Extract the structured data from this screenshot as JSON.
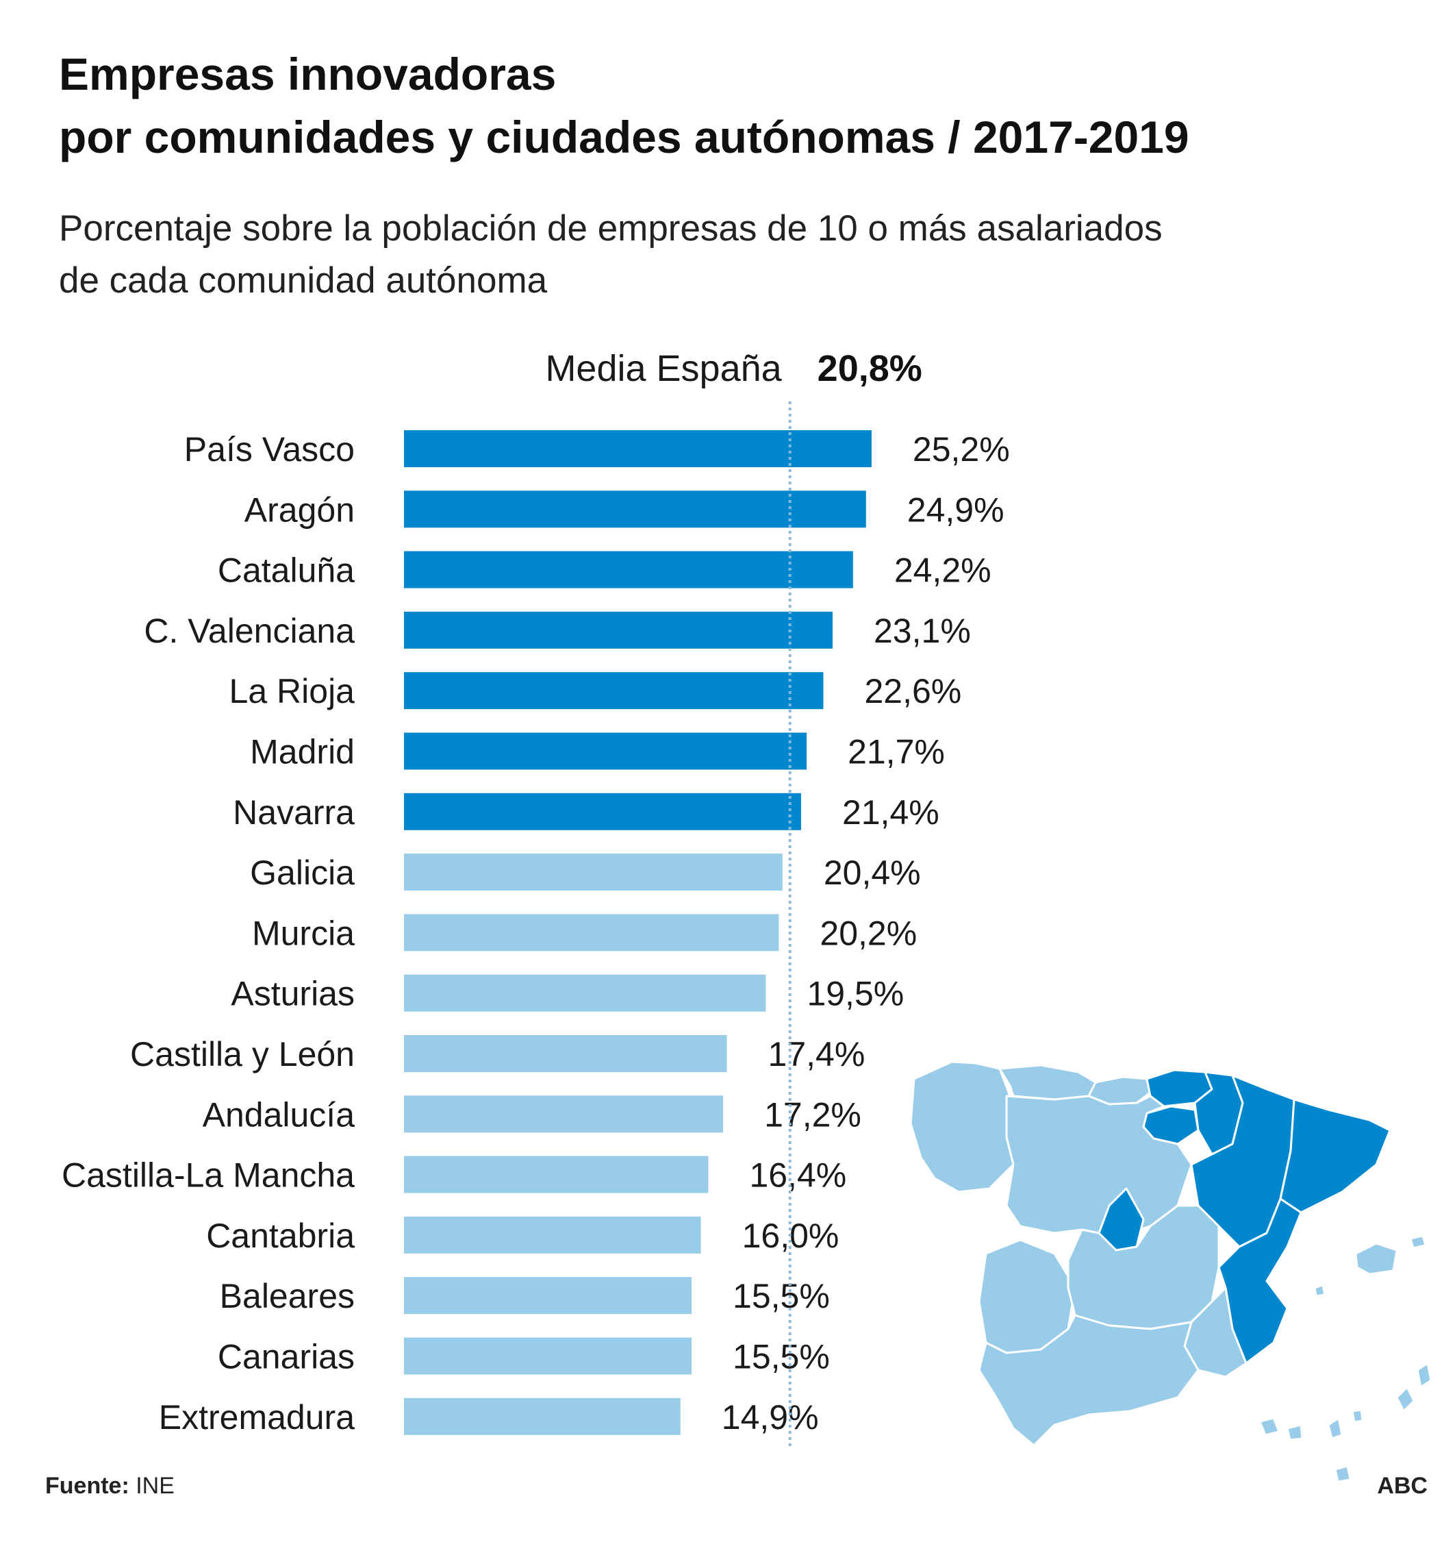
{
  "title_line1": "Empresas innovadoras",
  "title_line2": "por comunidades y ciudades autónomas / 2017-2019",
  "subtitle_line1": "Porcentaje sobre la población de empresas de 10 o más asalariados",
  "subtitle_line2": "de cada comunidad autónoma",
  "source_label": "Fuente:",
  "source_value": "INE",
  "brand": "ABC",
  "colors": {
    "above_average": "#0087cd",
    "below_average": "#99cce8",
    "average_line": "#8ab8d8",
    "map_border": "#ffffff"
  },
  "chart_data": {
    "type": "bar",
    "orientation": "horizontal",
    "categories": [
      "País Vasco",
      "Aragón",
      "Cataluña",
      "C. Valenciana",
      "La Rioja",
      "Madrid",
      "Navarra",
      "Galicia",
      "Murcia",
      "Asturias",
      "Castilla y León",
      "Andalucía",
      "Castilla-La Mancha",
      "Cantabria",
      "Baleares",
      "Canarias",
      "Extremadura"
    ],
    "values": [
      25.2,
      24.9,
      24.2,
      23.1,
      22.6,
      21.7,
      21.4,
      20.4,
      20.2,
      19.5,
      17.4,
      17.2,
      16.4,
      16.0,
      15.5,
      15.5,
      14.9
    ],
    "value_labels": [
      "25,2%",
      "24,9%",
      "24,2%",
      "23,1%",
      "22,6%",
      "21,7%",
      "21,4%",
      "20,4%",
      "20,2%",
      "19,5%",
      "17,4%",
      "17,2%",
      "16,4%",
      "16,0%",
      "15,5%",
      "15,5%",
      "14,9%"
    ],
    "reference_line": {
      "label": "Media España",
      "value": 20.8,
      "value_label": "20,8%"
    },
    "xlim": [
      0,
      25.2
    ],
    "grid": false,
    "legend": "none"
  },
  "map": {
    "highlighted_regions": [
      "País Vasco",
      "Aragón",
      "Cataluña",
      "C. Valenciana",
      "La Rioja",
      "Madrid",
      "Navarra"
    ],
    "other_regions": [
      "Galicia",
      "Murcia",
      "Asturias",
      "Castilla y León",
      "Andalucía",
      "Castilla-La Mancha",
      "Cantabria",
      "Baleares",
      "Canarias",
      "Extremadura"
    ]
  }
}
